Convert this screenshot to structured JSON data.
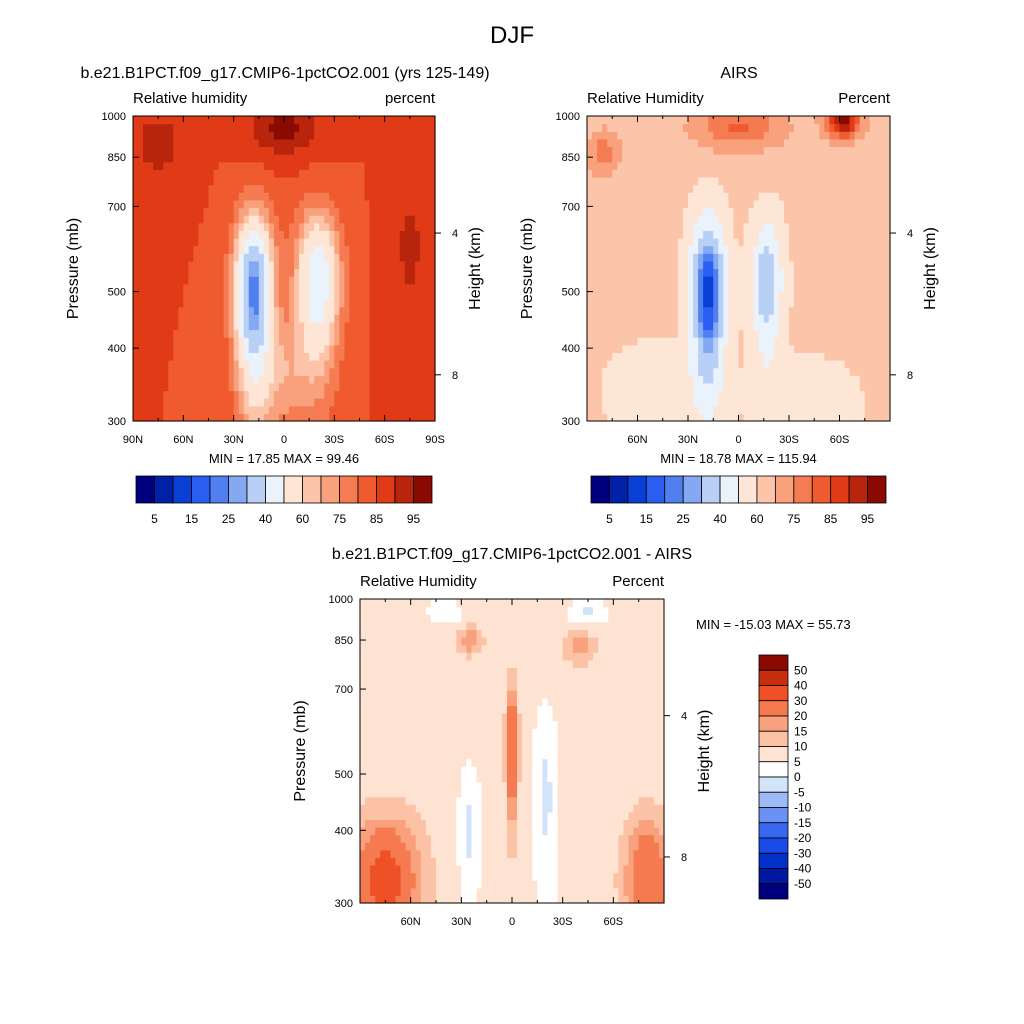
{
  "page_title": "DJF",
  "colors": {
    "rh_levels": [
      "#00007f",
      "#0020a8",
      "#0a3fd6",
      "#2a5ef0",
      "#5080f0",
      "#84a9f2",
      "#b8d0f6",
      "#eaf2fb",
      "#fee6d6",
      "#fcc5aa",
      "#f9a07c",
      "#f57b52",
      "#ef5a2e",
      "#e03b16",
      "#b8250c",
      "#8a0a02"
    ],
    "diff_levels": [
      "#00007f",
      "#0018a0",
      "#0030c8",
      "#1a4ae8",
      "#3868f0",
      "#6a92f4",
      "#9cbaf6",
      "#d2e4fa",
      "#ffffff",
      "#fee3d2",
      "#fcc2a6",
      "#f9a07c",
      "#f57a50",
      "#ee5126",
      "#c72e0e",
      "#8a0a02"
    ],
    "missing": "#ffffff",
    "frame": "#000000"
  },
  "chart_data": [
    {
      "type": "heatmap",
      "title": "b.e21.B1PCT.f09_g17.CMIP6-1pctCO2.001 (yrs 125-149)",
      "left_label": "Relative humidity",
      "right_label": "percent",
      "ylabel": "Pressure (mb)",
      "ylabel_right": "Height (km)",
      "x_ticks": [
        "90N",
        "60N",
        "30N",
        "0",
        "30S",
        "60S",
        "90S"
      ],
      "x_tick_values": [
        90,
        60,
        30,
        0,
        -30,
        -60,
        -90
      ],
      "xlim": [
        90,
        -90
      ],
      "y_ticks": [
        "300",
        "400",
        "500",
        "700",
        "850",
        "1000"
      ],
      "y_tick_values": [
        300,
        400,
        500,
        700,
        850,
        1000
      ],
      "ylim": [
        1000,
        300
      ],
      "y_scale": "log",
      "height_ticks": [
        "8",
        "4"
      ],
      "height_tick_values": [
        8,
        4
      ],
      "stats": "MIN =  17.85  MAX =  99.46",
      "colorbar_labels": [
        "5",
        "15",
        "25",
        "40",
        "60",
        "75",
        "85",
        "95"
      ],
      "colorbar_levels": 16,
      "colorbar_orientation": "horizontal"
    },
    {
      "type": "heatmap",
      "title": "AIRS",
      "left_label": "Relative Humidity",
      "right_label": "Percent",
      "ylabel": "Pressure (mb)",
      "ylabel_right": "Height (km)",
      "x_ticks": [
        "60N",
        "30N",
        "0",
        "30S",
        "60S"
      ],
      "x_tick_values": [
        60,
        30,
        0,
        -30,
        -60
      ],
      "xlim": [
        90,
        -90
      ],
      "y_ticks": [
        "300",
        "400",
        "500",
        "700",
        "850",
        "1000"
      ],
      "y_tick_values": [
        300,
        400,
        500,
        700,
        850,
        1000
      ],
      "ylim": [
        1000,
        300
      ],
      "y_scale": "log",
      "height_ticks": [
        "8",
        "4"
      ],
      "height_tick_values": [
        8,
        4
      ],
      "stats": "MIN =  18.78  MAX = 115.94",
      "colorbar_labels": [
        "5",
        "15",
        "25",
        "40",
        "60",
        "75",
        "85",
        "95"
      ],
      "colorbar_levels": 16,
      "colorbar_orientation": "horizontal"
    },
    {
      "type": "heatmap",
      "title": "b.e21.B1PCT.f09_g17.CMIP6-1pctCO2.001 - AIRS",
      "left_label": "Relative Humidity",
      "right_label": "Percent",
      "ylabel": "Pressure (mb)",
      "ylabel_right": "Height (km)",
      "x_ticks": [
        "60N",
        "30N",
        "0",
        "30S",
        "60S"
      ],
      "x_tick_values": [
        60,
        30,
        0,
        -30,
        -60
      ],
      "xlim": [
        90,
        -90
      ],
      "y_ticks": [
        "300",
        "400",
        "500",
        "700",
        "850",
        "1000"
      ],
      "y_tick_values": [
        300,
        400,
        500,
        700,
        850,
        1000
      ],
      "ylim": [
        1000,
        300
      ],
      "y_scale": "log",
      "height_ticks": [
        "8",
        "4"
      ],
      "height_tick_values": [
        8,
        4
      ],
      "stats": "MIN = -15.03  MAX =  55.73",
      "colorbar_labels": [
        "50",
        "40",
        "30",
        "20",
        "15",
        "10",
        "5",
        "0",
        "-5",
        "-10",
        "-15",
        "-20",
        "-30",
        "-40",
        "-50"
      ],
      "colorbar_levels": 16,
      "colorbar_orientation": "vertical"
    }
  ]
}
